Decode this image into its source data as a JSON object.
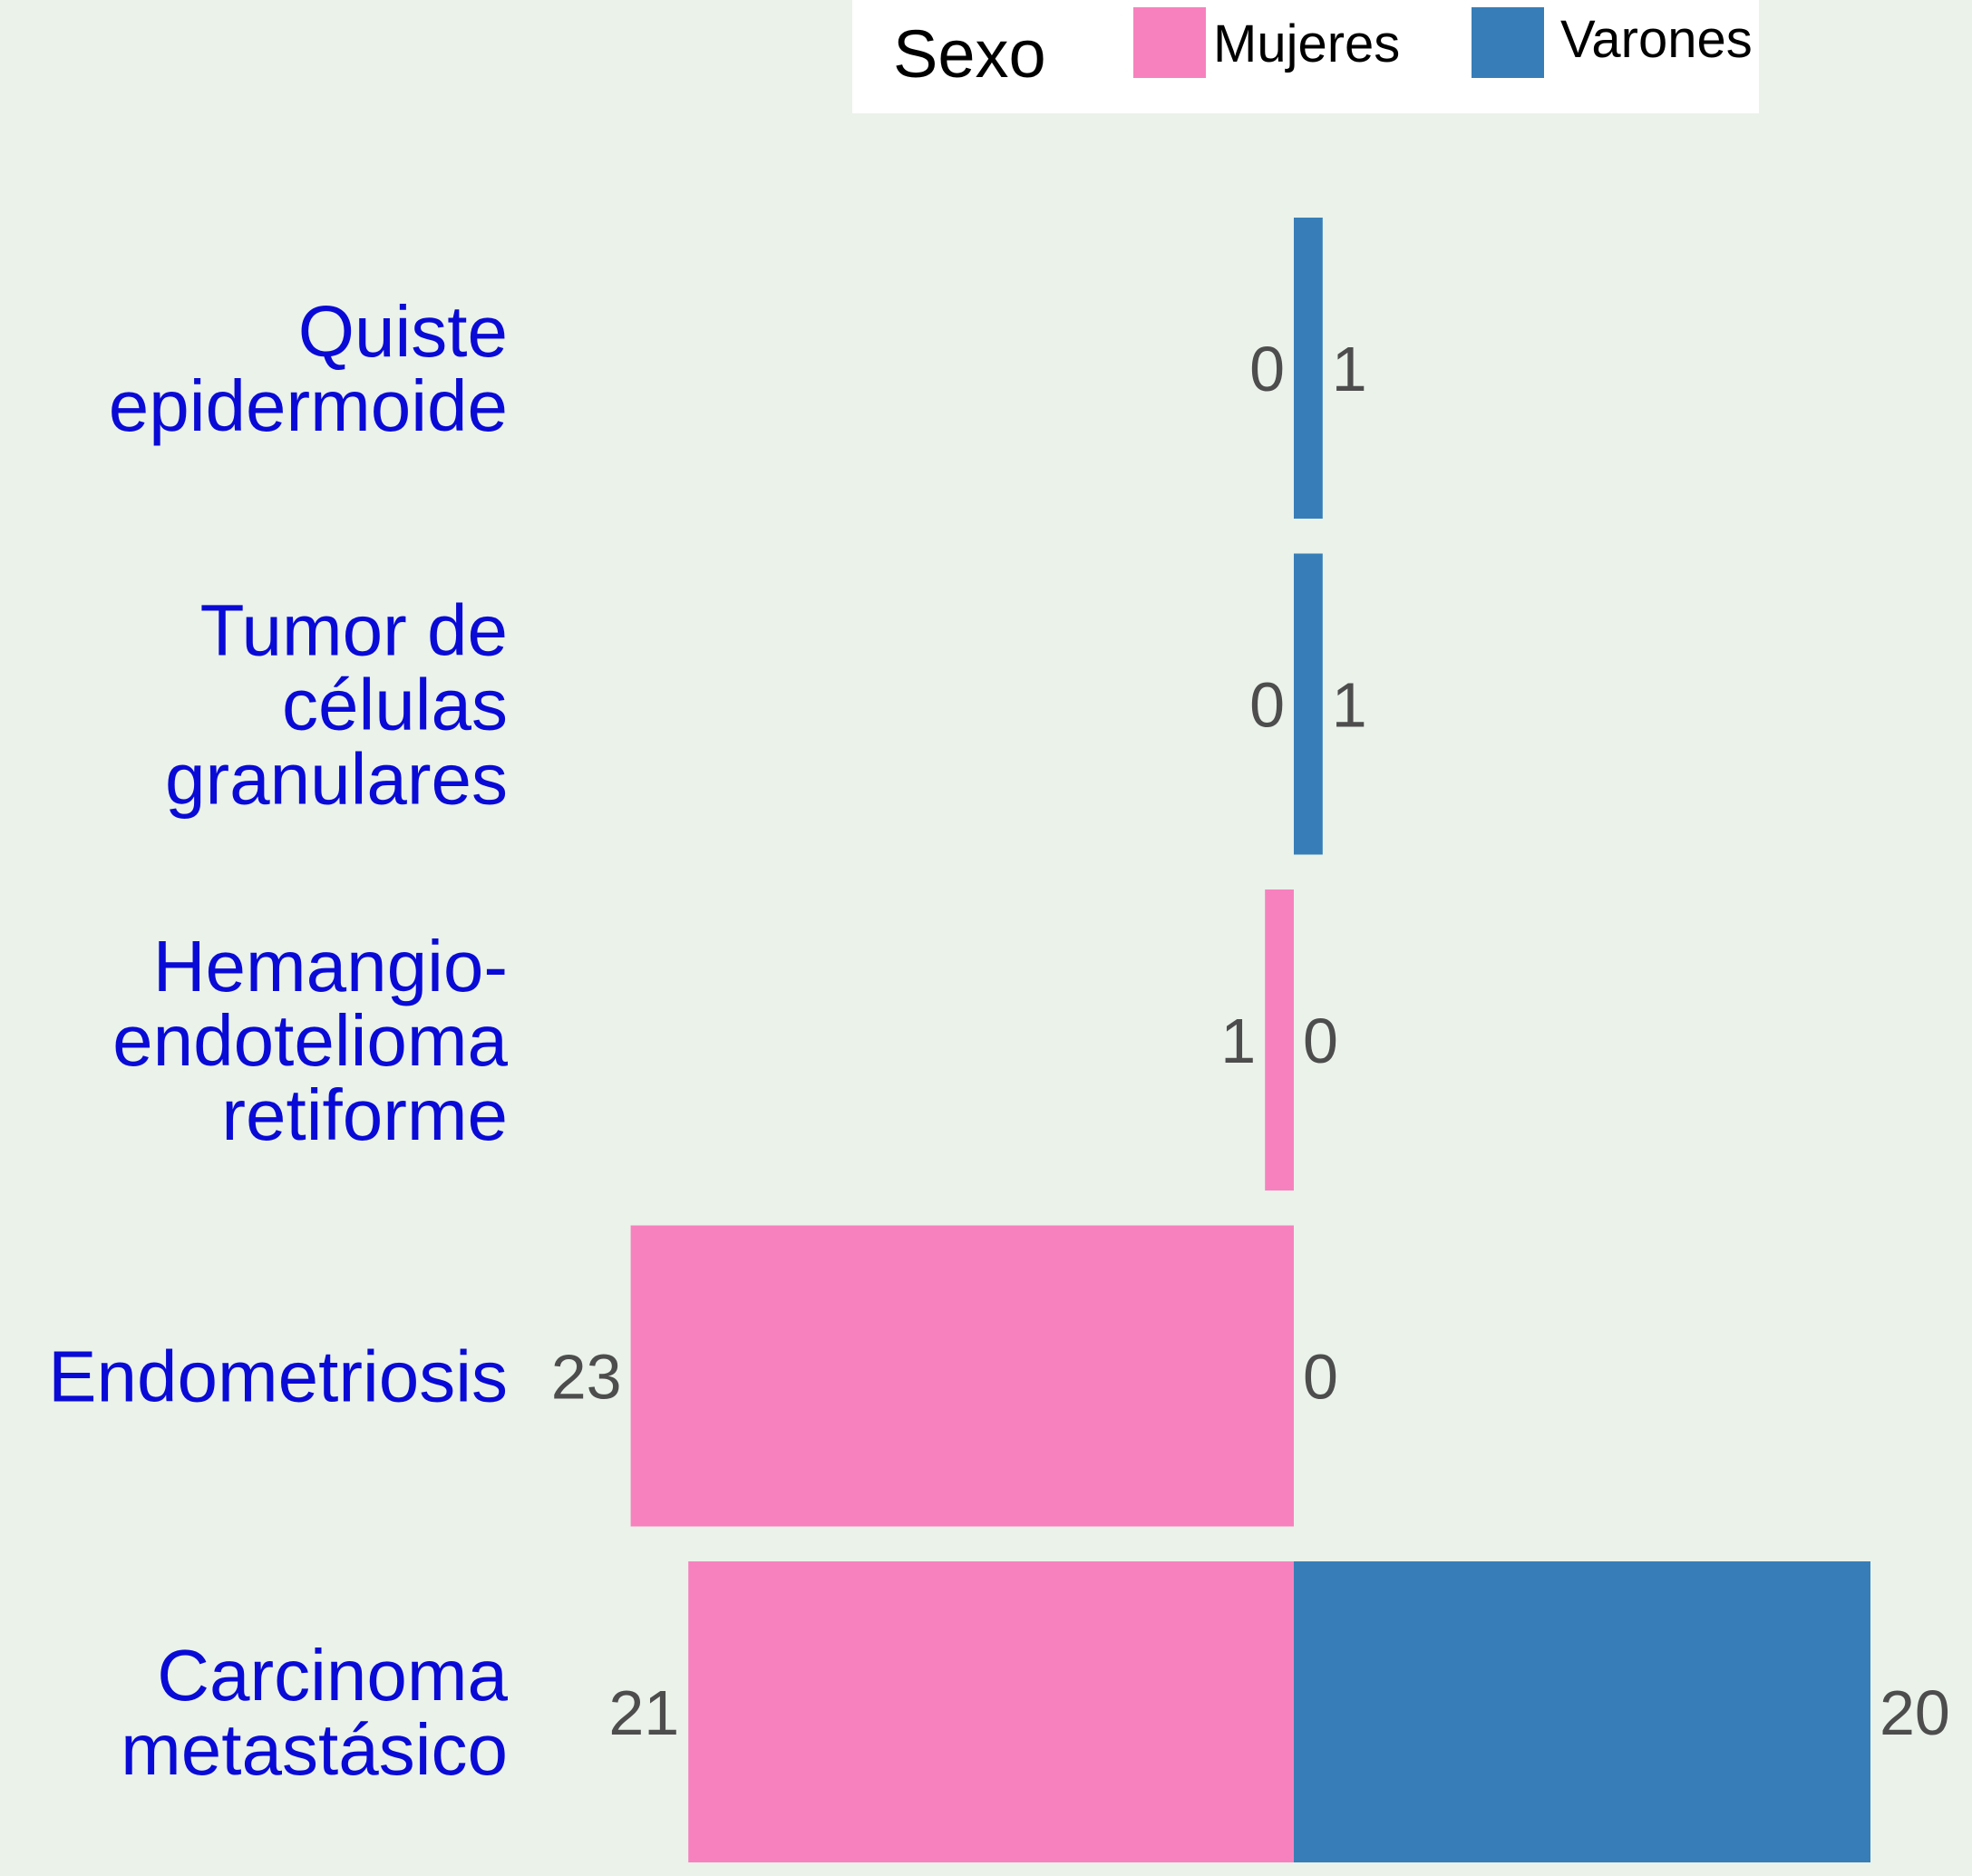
{
  "chart_data": {
    "type": "bar",
    "orientation": "horizontal-diverging",
    "legend_title": "Sexo",
    "legend_position": "top",
    "categories": [
      [
        "Quiste",
        "epidermoide"
      ],
      [
        "Tumor de",
        "células",
        "granulares"
      ],
      [
        "Hemangio-",
        "endotelioma",
        "retiforme"
      ],
      [
        "Endometriosis"
      ],
      [
        "Carcinoma",
        "metastásico"
      ]
    ],
    "series": [
      {
        "name": "Mujeres",
        "color": "#f781bf",
        "direction": "left",
        "values": [
          0,
          0,
          1,
          23,
          21
        ]
      },
      {
        "name": "Varones",
        "color": "#377eb8",
        "direction": "right",
        "values": [
          1,
          1,
          0,
          0,
          20
        ]
      }
    ],
    "grid": false,
    "background": "#eaf2ea",
    "category_label_color": "#0a0ad6",
    "value_label_color": "#4d4d4d"
  }
}
